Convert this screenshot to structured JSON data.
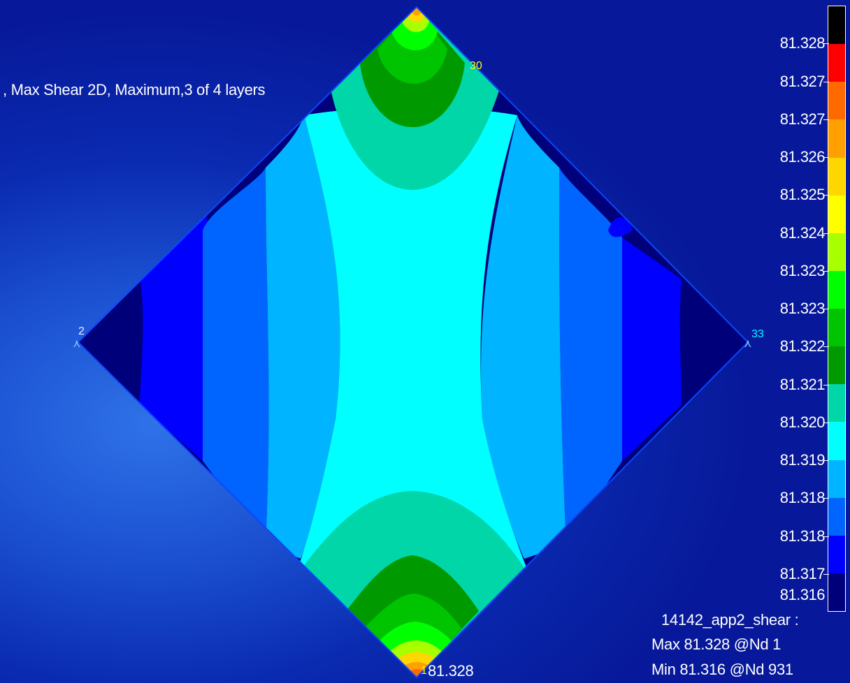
{
  "plot": {
    "header": ", Max Shear 2D, Maximum,3 of 4 layers",
    "node_labels": {
      "left": "2",
      "right": "33",
      "top_right": "30",
      "bottom": "1"
    },
    "bottom_value": "81.328"
  },
  "legend": {
    "labels": [
      "81.328",
      "81.327",
      "81.327",
      "81.326",
      "81.325",
      "81.324",
      "81.323",
      "81.323",
      "81.322",
      "81.321",
      "81.320",
      "81.319",
      "81.318",
      "81.318",
      "81.317",
      "81.316"
    ],
    "colors": [
      "#000000",
      "#ff0000",
      "#ff6a00",
      "#ffa000",
      "#ffd700",
      "#ffff00",
      "#a8ff00",
      "#00ff00",
      "#00c400",
      "#009a00",
      "#00d6a8",
      "#00ffff",
      "#00b4ff",
      "#0064ff",
      "#0000ff",
      "#00007a"
    ]
  },
  "info": {
    "dataset": "14142_app2_shear :",
    "max": "Max 81.328 @Nd 1",
    "min": "Min 81.316 @Nd 931"
  }
}
